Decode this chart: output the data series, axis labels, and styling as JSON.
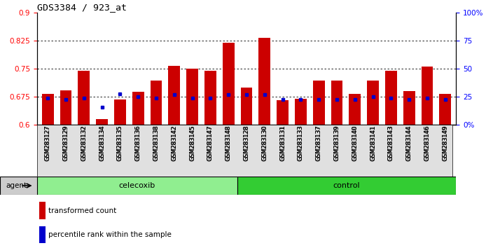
{
  "title": "GDS3384 / 923_at",
  "samples": [
    "GSM283127",
    "GSM283129",
    "GSM283132",
    "GSM283134",
    "GSM283135",
    "GSM283136",
    "GSM283138",
    "GSM283142",
    "GSM283145",
    "GSM283147",
    "GSM283148",
    "GSM283128",
    "GSM283130",
    "GSM283131",
    "GSM283133",
    "GSM283137",
    "GSM283139",
    "GSM283140",
    "GSM283141",
    "GSM283143",
    "GSM283144",
    "GSM283146",
    "GSM283149"
  ],
  "red_values": [
    0.682,
    0.692,
    0.745,
    0.615,
    0.667,
    0.688,
    0.718,
    0.758,
    0.75,
    0.745,
    0.82,
    0.7,
    0.832,
    0.665,
    0.67,
    0.718,
    0.718,
    0.683,
    0.718,
    0.745,
    0.69,
    0.755,
    0.682
  ],
  "blue_values": [
    0.672,
    0.668,
    0.672,
    0.647,
    0.682,
    0.675,
    0.672,
    0.68,
    0.672,
    0.672,
    0.68,
    0.68,
    0.68,
    0.667,
    0.668,
    0.668,
    0.668,
    0.667,
    0.675,
    0.672,
    0.668,
    0.672,
    0.668
  ],
  "celecoxib_count": 11,
  "control_count": 12,
  "ylim_left": [
    0.6,
    0.9
  ],
  "ylim_right": [
    0,
    100
  ],
  "yticks_left": [
    0.6,
    0.675,
    0.75,
    0.825,
    0.9
  ],
  "yticks_right": [
    0,
    25,
    50,
    75,
    100
  ],
  "ytick_labels_right": [
    "0%",
    "25",
    "50",
    "75",
    "100%"
  ],
  "gridlines": [
    0.675,
    0.75,
    0.825
  ],
  "bar_color": "#CC0000",
  "dot_color": "#0000CC",
  "celecoxib_color": "#90EE90",
  "control_color": "#33CC33",
  "agent_bg_color": "#CCCCCC",
  "agent_label": "agent",
  "celecoxib_label": "celecoxib",
  "control_label": "control",
  "legend_red": "transformed count",
  "legend_blue": "percentile rank within the sample",
  "bar_bottom": 0.6,
  "bar_width": 0.65
}
